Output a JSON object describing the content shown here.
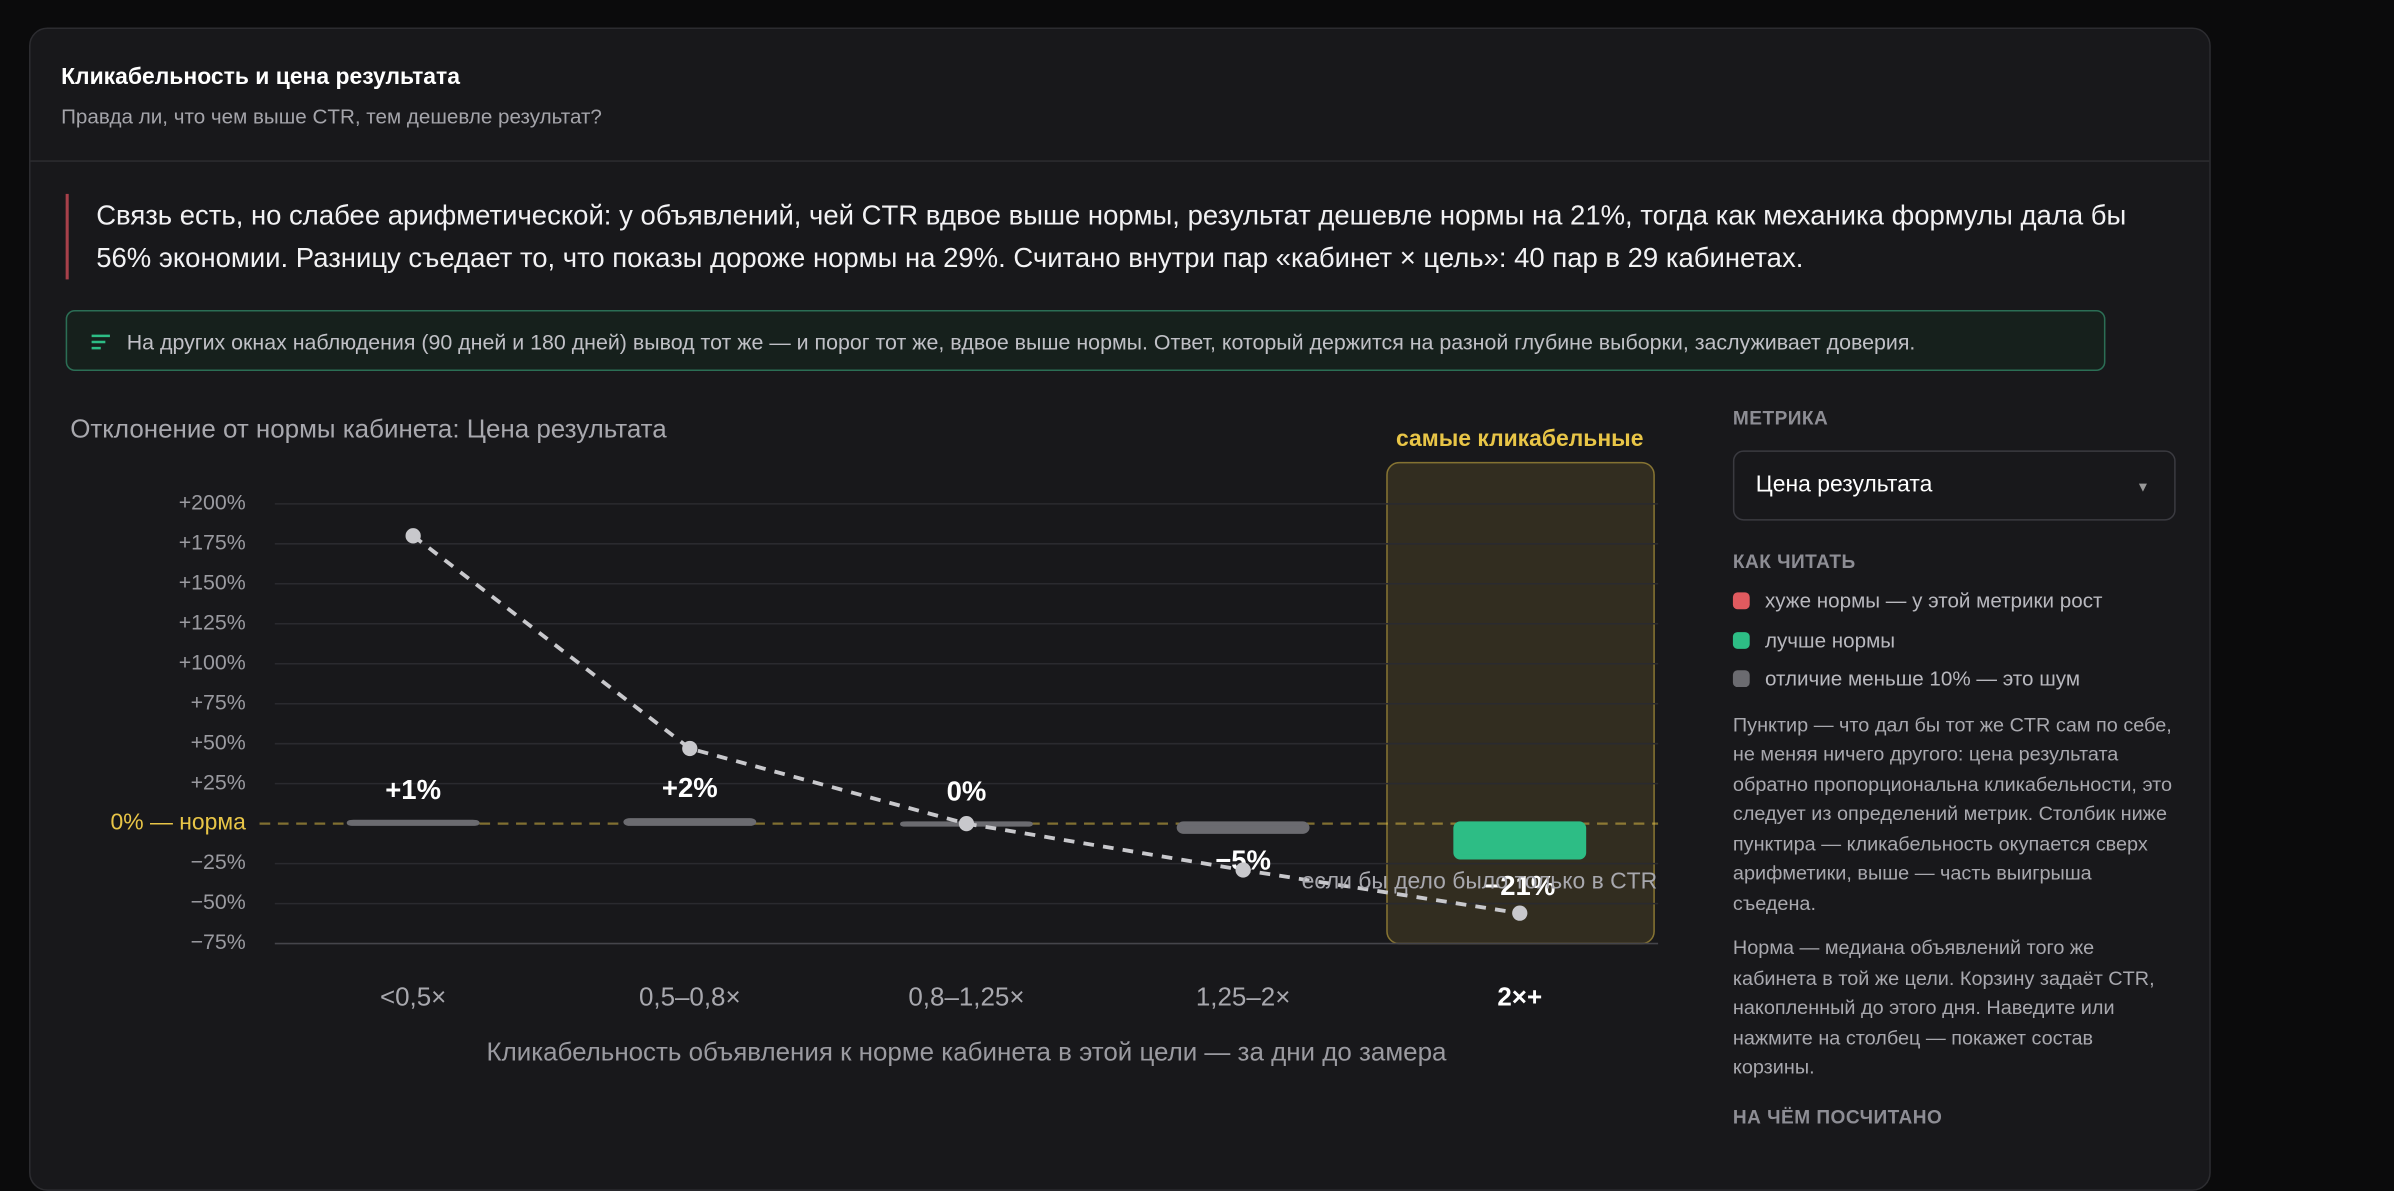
{
  "header": {
    "title": "Кликабельность и цена результата",
    "subtitle": "Правда ли, что чем выше CTR, тем дешевле результат?"
  },
  "summary": "Связь есть, но слабее арифметической: у объявлений, чей CTR вдвое выше нормы, результат дешевле нормы на 21%, тогда как механика формулы дала бы 56% экономии. Разницу съедает то, что показы дороже нормы на 29%. Считано внутри пар «кабинет × цель»: 40 пар в 29 кабинетах.",
  "note": "На других окнах наблюдения (90 дней и 180 дней) вывод тот же — и порог тот же, вдвое выше нормы. Ответ, который держится на разной глубине выборки, заслуживает доверия.",
  "chart_data": {
    "type": "bar",
    "title": "Отклонение от нормы кабинета: Цена результата",
    "x_label": "Кликабельность объявления к норме кабинета в этой цели — за дни до замера",
    "categories": [
      "<0,5×",
      "0,5–0,8×",
      "0,8–1,25×",
      "1,25–2×",
      "2×+"
    ],
    "values": [
      1,
      2,
      0,
      -5,
      -21
    ],
    "value_labels": [
      "+1%",
      "+2%",
      "0%",
      "−5%",
      "−21%"
    ],
    "colors": [
      "#6b6b70",
      "#6b6b70",
      "#6b6b70",
      "#6b6b70",
      "#2dbd85"
    ],
    "line": {
      "name": "если бы дело было только в CTR",
      "color": "#c8c8cc",
      "values": [
        180,
        47,
        0,
        -29,
        -56
      ]
    },
    "ylim": [
      -75,
      200
    ],
    "yticks": [
      {
        "value": -75,
        "label": "−75%"
      },
      {
        "value": -50,
        "label": "−50%"
      },
      {
        "value": -25,
        "label": "−25%"
      },
      {
        "value": 25,
        "label": "+25%"
      },
      {
        "value": 50,
        "label": "+50%"
      },
      {
        "value": 75,
        "label": "+75%"
      },
      {
        "value": 100,
        "label": "+100%"
      },
      {
        "value": 125,
        "label": "+125%"
      },
      {
        "value": 150,
        "label": "+150%"
      },
      {
        "value": 175,
        "label": "+175%"
      },
      {
        "value": 200,
        "label": "+200%"
      }
    ],
    "grid": true,
    "reference_line": {
      "value": 0,
      "label": "0% — норма",
      "color": "#e8c547"
    },
    "highlight": {
      "category": 4,
      "label": "самые кликабельные",
      "color": "#e8c547"
    }
  },
  "sidebar": {
    "metric_heading": "МЕТРИКА",
    "metric_value": "Цена результата",
    "how_heading": "КАК ЧИТАТЬ",
    "legend": [
      {
        "label": "хуже нормы — у этой метрики рост",
        "color": "#e05a5f"
      },
      {
        "label": "лучше нормы",
        "color": "#2dbd85"
      },
      {
        "label": "отличие меньше 10% — это шум",
        "color": "#6b6b70"
      }
    ],
    "paragraphs": [
      "Пунктир — что дал бы тот же CTR сам по себе, не меняя ничего другого: цена результата обратно пропорциональна кликабельности, это следует из определений метрик. Столбик ниже пунктира — кликабельность окупается сверх арифметики, выше — часть выигрыша съедена.",
      "Норма — медиана объявлений того же кабинета в той же цели. Корзину задаёт CTR, накопленный до этого дня. Наведите или нажмите на столбец — покажет состав корзины."
    ],
    "basis_heading": "НА ЧЁМ ПОСЧИТАНО"
  }
}
